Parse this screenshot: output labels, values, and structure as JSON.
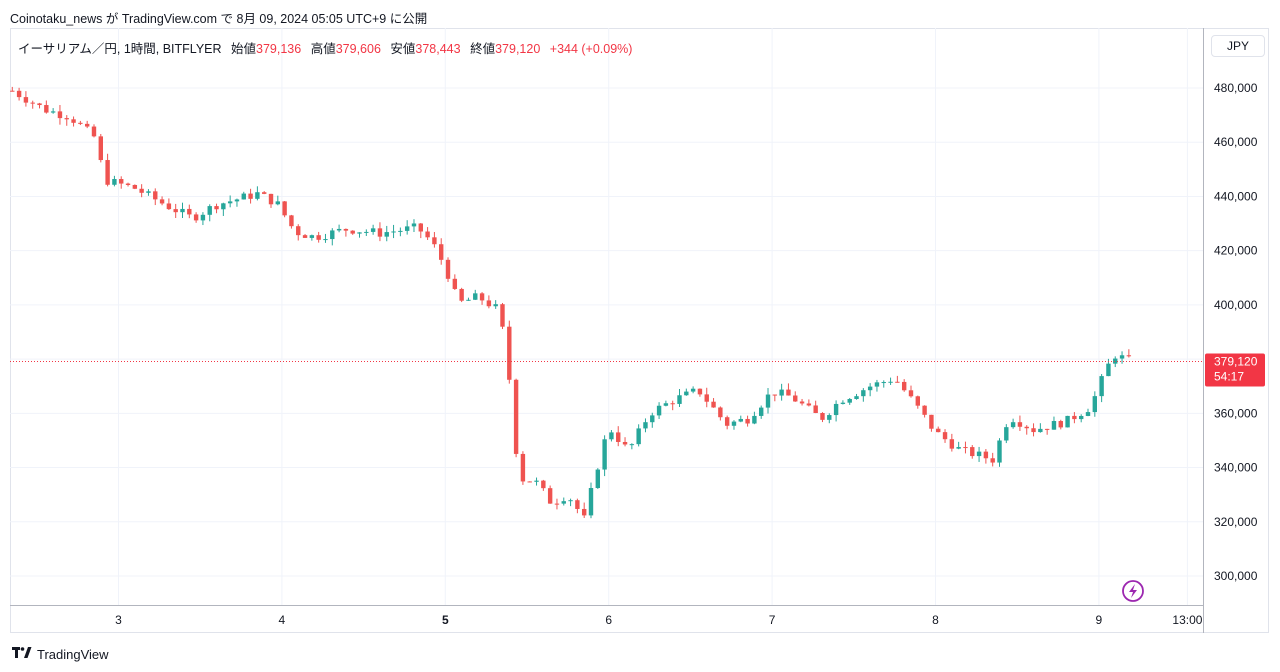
{
  "header": {
    "published_line": "Coinotaku_news が TradingView.com で 8月 09, 2024 05:05 UTC+9 に公開"
  },
  "legend": {
    "symbol": "イーサリアム／円, 1時間, BITFLYER",
    "open_label": "始値",
    "open_value": "379,136",
    "high_label": "高値",
    "high_value": "379,606",
    "low_label": "安値",
    "low_value": "378,443",
    "close_label": "終値",
    "close_value": "379,120",
    "change": "+344 (+0.09%)"
  },
  "currency_button": "JPY",
  "price_tag": {
    "price": "379,120",
    "countdown": "54:17"
  },
  "footer": {
    "brand": "TradingView"
  },
  "colors": {
    "up": "#26a69a",
    "down": "#ef5350",
    "grid": "#f0f3fa",
    "price_line": "#f23645"
  },
  "chart_data": {
    "type": "candlestick",
    "y_ticks": [
      300000,
      320000,
      340000,
      360000,
      380000,
      400000,
      420000,
      440000,
      460000,
      480000
    ],
    "y_tick_labels": [
      "300,000",
      "320,000",
      "340,000",
      "360,000",
      "380,000",
      "400,000",
      "420,000",
      "440,000",
      "460,000",
      "480,000"
    ],
    "x_ticks": [
      {
        "label": "3",
        "day": 3,
        "bold": false
      },
      {
        "label": "4",
        "day": 4,
        "bold": false
      },
      {
        "label": "5",
        "day": 5,
        "bold": true
      },
      {
        "label": "6",
        "day": 6,
        "bold": false
      },
      {
        "label": "7",
        "day": 7,
        "bold": false
      },
      {
        "label": "8",
        "day": 8,
        "bold": false
      },
      {
        "label": "9",
        "day": 9,
        "bold": false
      },
      {
        "label": "13:00",
        "day": 9.5417,
        "bold": false
      }
    ],
    "ylim": [
      290000,
      500000
    ],
    "last_price": 379120,
    "keyframes": [
      [
        2.35,
        479000
      ],
      [
        2.55,
        472000
      ],
      [
        2.7,
        469500
      ],
      [
        2.85,
        462000
      ],
      [
        2.92,
        446000
      ],
      [
        3.1,
        443000
      ],
      [
        3.3,
        436500
      ],
      [
        3.45,
        432000
      ],
      [
        3.6,
        437000
      ],
      [
        3.85,
        441000
      ],
      [
        3.97,
        437500
      ],
      [
        4.08,
        427000
      ],
      [
        4.2,
        425000
      ],
      [
        4.4,
        428000
      ],
      [
        4.6,
        426500
      ],
      [
        4.83,
        428500
      ],
      [
        4.92,
        423000
      ],
      [
        5.0,
        414000
      ],
      [
        5.08,
        400500
      ],
      [
        5.2,
        403000
      ],
      [
        5.33,
        398000
      ],
      [
        5.38,
        380000
      ],
      [
        5.45,
        336000
      ],
      [
        5.55,
        335000
      ],
      [
        5.65,
        327000
      ],
      [
        5.75,
        330000
      ],
      [
        5.85,
        321000
      ],
      [
        5.93,
        340000
      ],
      [
        6.0,
        355000
      ],
      [
        6.12,
        346000
      ],
      [
        6.25,
        360000
      ],
      [
        6.4,
        365000
      ],
      [
        6.55,
        368500
      ],
      [
        6.72,
        356000
      ],
      [
        6.85,
        358000
      ],
      [
        7.0,
        368000
      ],
      [
        7.12,
        366000
      ],
      [
        7.3,
        358000
      ],
      [
        7.42,
        365000
      ],
      [
        7.6,
        370000
      ],
      [
        7.75,
        373000
      ],
      [
        7.88,
        363000
      ],
      [
        8.0,
        353000
      ],
      [
        8.15,
        346500
      ],
      [
        8.35,
        343000
      ],
      [
        8.45,
        359000
      ],
      [
        8.6,
        354000
      ],
      [
        8.8,
        357000
      ],
      [
        8.95,
        362500
      ],
      [
        9.05,
        377000
      ],
      [
        9.1,
        381500
      ],
      [
        9.2,
        379120
      ]
    ]
  }
}
